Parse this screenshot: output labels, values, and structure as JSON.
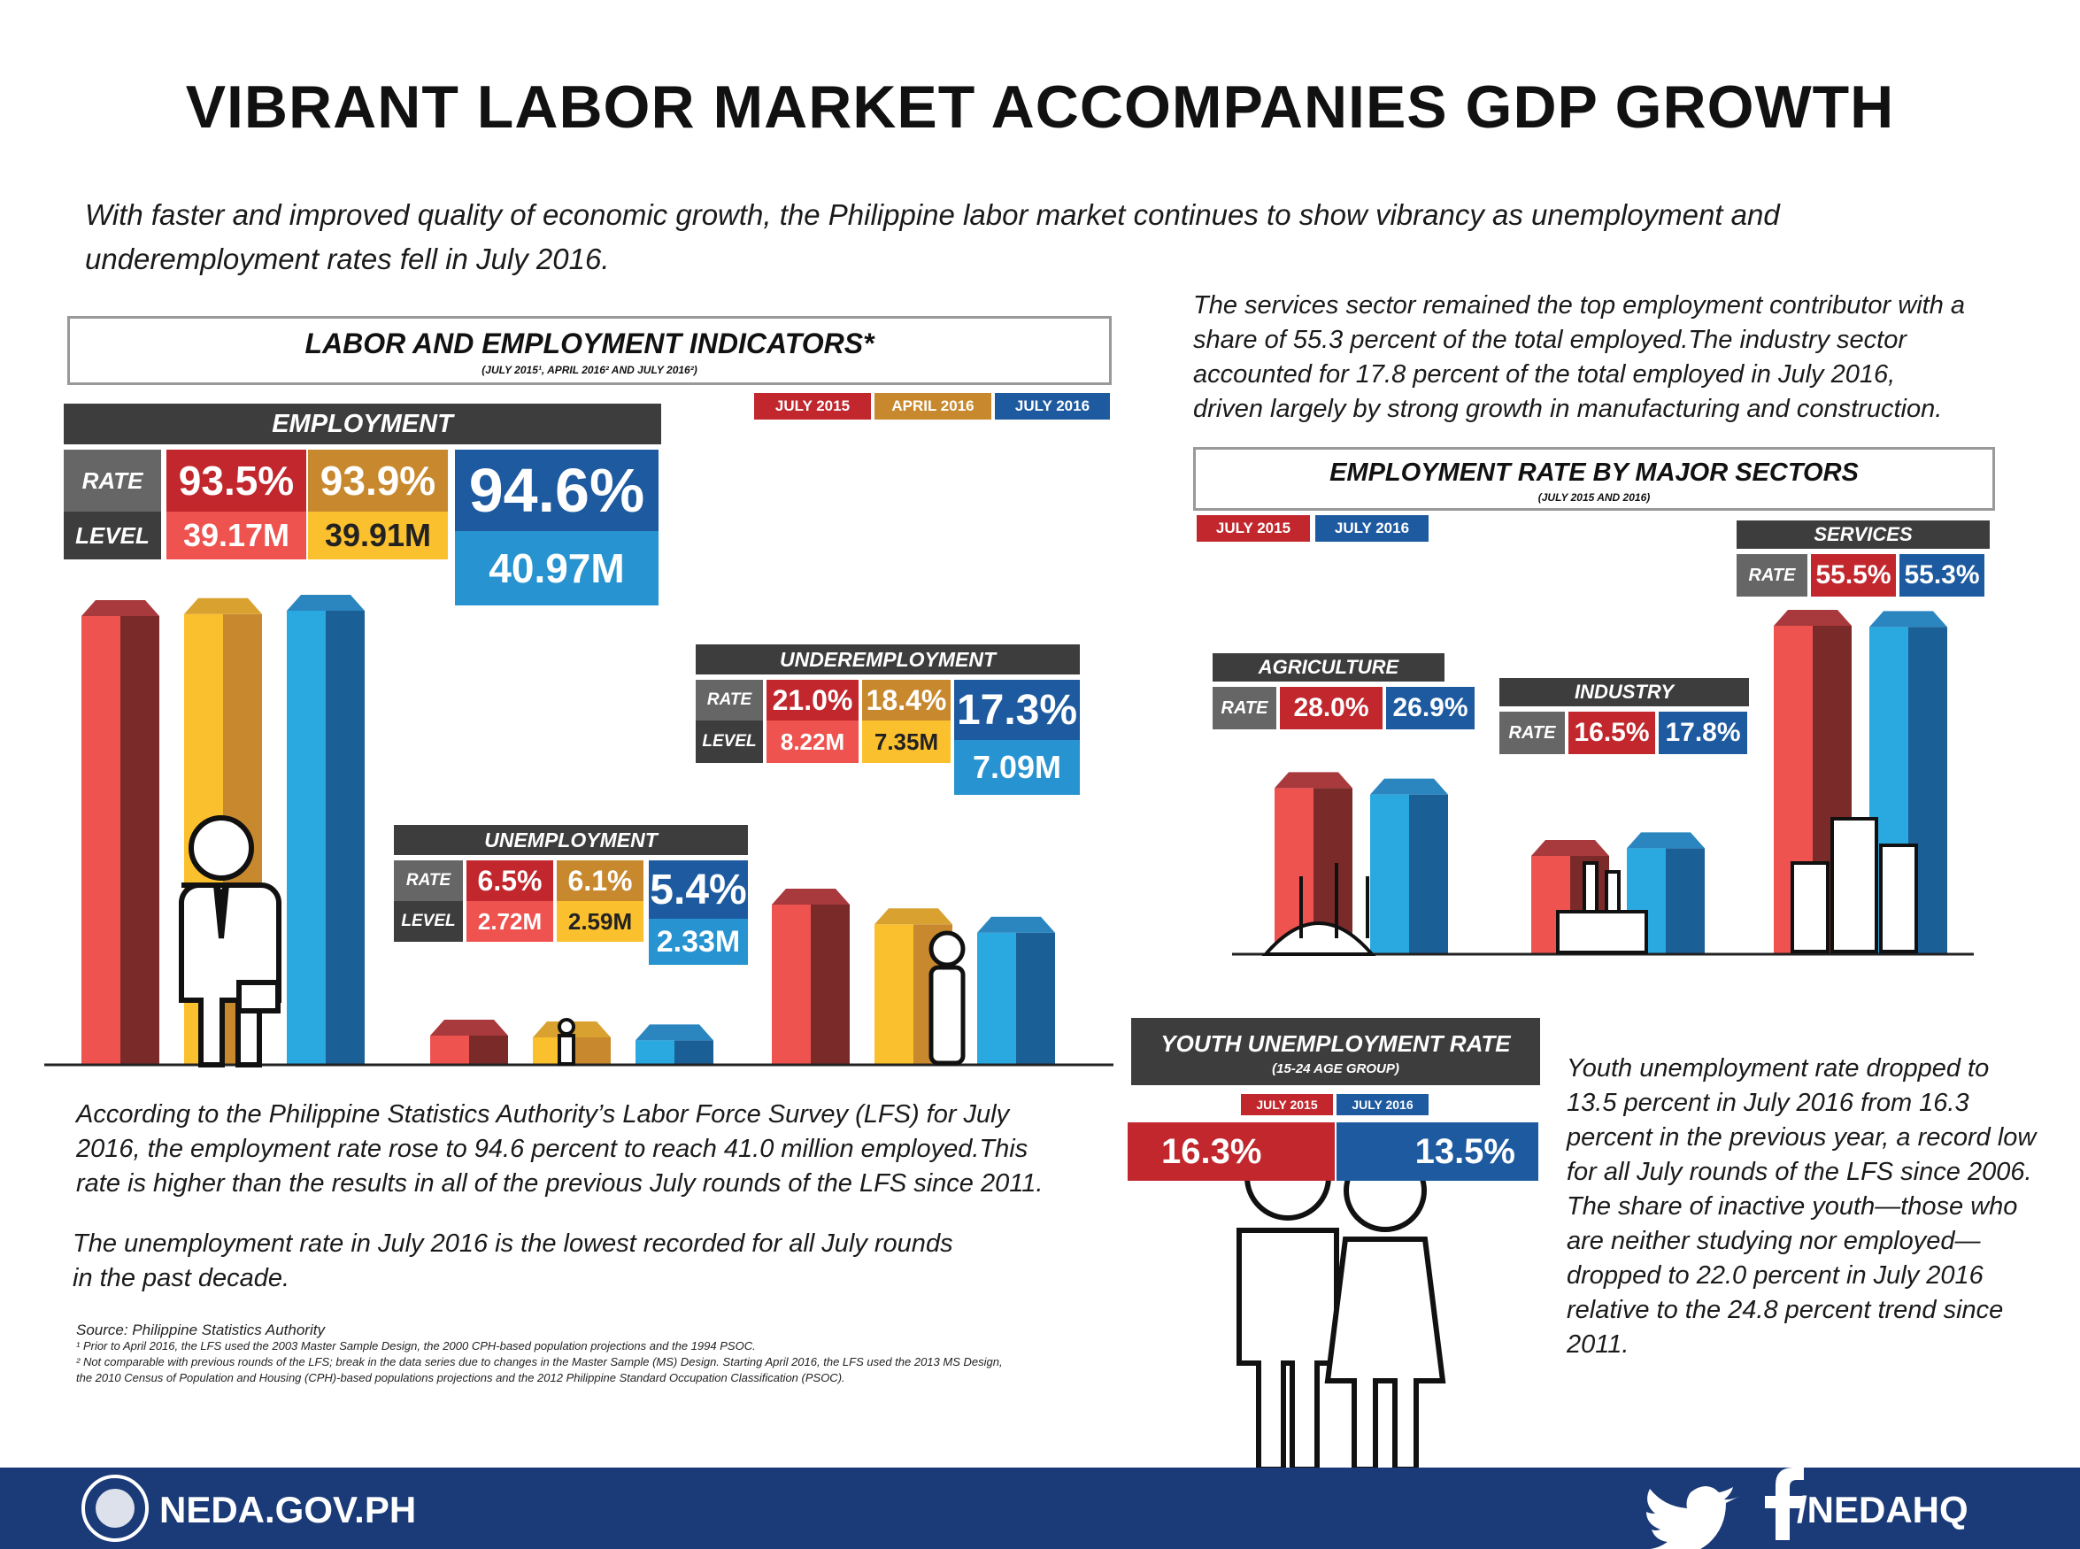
{
  "title": "VIBRANT LABOR MARKET ACCOMPANIES GDP GROWTH",
  "intro": "With faster and improved quality of economic growth, the Philippine labor market continues to show vibrancy as unemployment and underemployment rates fell in July 2016.",
  "services_text": "The services sector remained the top employment contributor with a share of 55.3 percent of the total employed.The industry sector accounted for 17.8 percent of the total employed in July 2016, driven largely by strong growth in manufacturing and construction.",
  "lfs_text": "According to the Philippine Statistics Authority’s Labor Force Survey (LFS) for July 2016, the employment rate rose to 94.6 percent to reach 41.0 million employed.This rate is higher than the results in all of the previous July rounds of the LFS since 2011.",
  "unemp_text": "The unemployment rate in July 2016 is the lowest recorded for all July rounds in the past decade.",
  "youth_text": "Youth unemployment rate dropped to 13.5 percent in July 2016 from 16.3 percent in the previous year, a record low for all July rounds of the LFS since 2006. The share of inactive youth—those who are neither studying nor employed—dropped to 22.0 percent in July 2016 relative to the 24.8 percent trend since 2011.",
  "source": {
    "line1": "Source: Philippine Statistics Authority",
    "note1": "¹ Prior to April 2016, the LFS used the 2003 Master Sample Design, the 2000 CPH-based population projections and the 1994 PSOC.",
    "note2": "² Not comparable with previous rounds of the LFS; break in the data series due to changes in the Master Sample (MS) Design. Starting April 2016, the LFS used the 2013 MS Design, the 2010 Census of Population and Housing (CPH)-based populations projections and the 2012 Philippine Standard Occupation Classification (PSOC)."
  },
  "indicators": {
    "header": "LABOR AND EMPLOYMENT INDICATORS*",
    "sub": "(JULY 2015¹, APRIL 2016² AND JULY 2016²)",
    "legend": [
      "JULY 2015",
      "APRIL 2016",
      "JULY 2016"
    ],
    "rate_label": "RATE",
    "level_label": "LEVEL",
    "employment": {
      "title": "EMPLOYMENT",
      "rates": [
        "93.5%",
        "93.9%",
        "94.6%"
      ],
      "levels": [
        "39.17M",
        "39.91M",
        "40.97M"
      ]
    },
    "underemployment": {
      "title": "UNDEREMPLOYMENT",
      "rates": [
        "21.0%",
        "18.4%",
        "17.3%"
      ],
      "levels": [
        "8.22M",
        "7.35M",
        "7.09M"
      ]
    },
    "unemployment": {
      "title": "UNEMPLOYMENT",
      "rates": [
        "6.5%",
        "6.1%",
        "5.4%"
      ],
      "levels": [
        "2.72M",
        "2.59M",
        "2.33M"
      ]
    }
  },
  "sectors": {
    "header": "EMPLOYMENT RATE  BY MAJOR SECTORS",
    "sub": "(JULY 2015 AND 2016)",
    "legend": [
      "JULY 2015",
      "JULY 2016"
    ],
    "rate_label": "RATE",
    "agriculture": {
      "title": "AGRICULTURE",
      "rates": [
        "28.0%",
        "26.9%"
      ]
    },
    "industry": {
      "title": "INDUSTRY",
      "rates": [
        "16.5%",
        "17.8%"
      ]
    },
    "services": {
      "title": "SERVICES",
      "rates": [
        "55.5%",
        "55.3%"
      ]
    }
  },
  "youth": {
    "title": "YOUTH UNEMPLOYMENT RATE",
    "sub": "(15-24 AGE GROUP)",
    "legend": [
      "JULY 2015",
      "JULY 2016"
    ],
    "rates": [
      "16.3%",
      "13.5%"
    ]
  },
  "footer": {
    "left": "NEDA.GOV.PH",
    "right": "/NEDAHQ"
  },
  "colors": {
    "jul2015": "#c1272d",
    "apr2016": "#fbc02d",
    "jul2016": "#1d5aa0",
    "footer": "#1a3a78"
  },
  "chart_data": [
    {
      "type": "bar",
      "title": "LABOR AND EMPLOYMENT INDICATORS*",
      "categories": [
        "EMPLOYMENT",
        "UNEMPLOYMENT",
        "UNDEREMPLOYMENT"
      ],
      "series": [
        {
          "name": "JULY 2015",
          "values": [
            93.5,
            6.5,
            21.0
          ]
        },
        {
          "name": "APRIL 2016",
          "values": [
            93.9,
            6.1,
            18.4
          ]
        },
        {
          "name": "JULY 2016",
          "values": [
            94.6,
            5.4,
            17.3
          ]
        }
      ]
    },
    {
      "type": "bar",
      "title": "EMPLOYMENT RATE  BY MAJOR SECTORS",
      "categories": [
        "AGRICULTURE",
        "INDUSTRY",
        "SERVICES"
      ],
      "series": [
        {
          "name": "JULY 2015",
          "values": [
            28.0,
            16.5,
            55.5
          ]
        },
        {
          "name": "JULY 2016",
          "values": [
            26.9,
            17.8,
            55.3
          ]
        }
      ]
    },
    {
      "type": "bar",
      "title": "YOUTH UNEMPLOYMENT RATE",
      "categories": [
        "JULY 2015",
        "JULY 2016"
      ],
      "values": [
        16.3,
        13.5
      ]
    }
  ]
}
